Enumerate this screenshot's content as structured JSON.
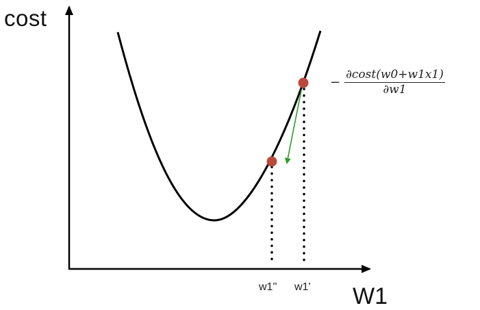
{
  "labels": {
    "y_axis": "cost",
    "x_axis": "W1",
    "tick_w1_double_prime": "w1''",
    "tick_w1_prime": "w1'"
  },
  "formula": {
    "sign": "−",
    "numerator": "∂cost(w0+w1x1)",
    "denominator": "∂w1"
  },
  "colors": {
    "curve": "#000000",
    "axes": "#000000",
    "points": "#b84a3a",
    "gradient_arrow": "#2a9d2a",
    "guide_lines": "#000000"
  },
  "icons": {
    "points": "filled-circle",
    "gradient_step": "arrow"
  }
}
